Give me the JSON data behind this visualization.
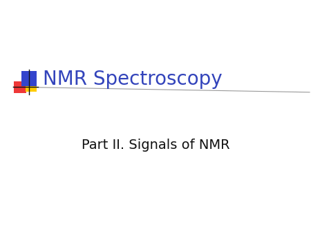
{
  "title": "NMR Spectroscopy",
  "subtitle": "Part II. Signals of NMR",
  "background_color": "#ffffff",
  "title_color": "#3344bb",
  "subtitle_color": "#111111",
  "title_fontsize": 20,
  "subtitle_fontsize": 14,
  "square_blue": "#3344cc",
  "square_red": "#ee2222",
  "square_yellow": "#ffcc00",
  "line_color": "#999999",
  "cross_color": "#111111",
  "fig_width": 4.5,
  "fig_height": 3.38,
  "dpi": 100
}
